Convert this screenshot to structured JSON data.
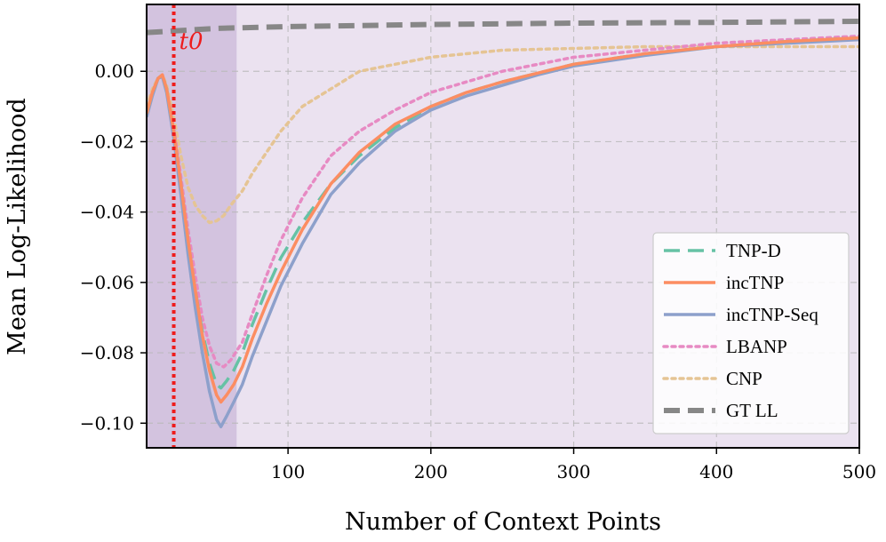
{
  "chart_data": {
    "type": "line",
    "title": "",
    "xlabel": "Number of Context Points",
    "ylabel": "Mean Log-Likelihood",
    "xlim": [
      1,
      500
    ],
    "ylim": [
      -0.107,
      0.019
    ],
    "x_ticks": [
      100,
      200,
      300,
      400,
      500
    ],
    "x_tick_labels": [
      "100",
      "200",
      "300",
      "400",
      "500"
    ],
    "y_ticks": [
      0.0,
      -0.02,
      -0.04,
      -0.06,
      -0.08,
      -0.1
    ],
    "y_tick_labels": [
      "0.00",
      "−0.02",
      "−0.04",
      "−0.06",
      "−0.08",
      "−0.10"
    ],
    "grid": true,
    "legend_position": "lower right",
    "background_color": "#ebe2f0",
    "shaded_region": {
      "x": [
        1,
        64
      ],
      "color": "#cbb8da"
    },
    "vertical_line": {
      "x": 20,
      "label": "t0",
      "color": "#ee1c1c",
      "style": "dotted"
    },
    "series": [
      {
        "name": "TNP-D",
        "color": "#66c2a5",
        "style": "dashed",
        "points": [
          [
            1,
            -0.012
          ],
          [
            5,
            -0.006
          ],
          [
            9,
            -0.002
          ],
          [
            12,
            -0.001
          ],
          [
            15,
            -0.005
          ],
          [
            20,
            -0.017
          ],
          [
            25,
            -0.032
          ],
          [
            30,
            -0.048
          ],
          [
            35,
            -0.062
          ],
          [
            40,
            -0.074
          ],
          [
            45,
            -0.083
          ],
          [
            50,
            -0.089
          ],
          [
            53,
            -0.09
          ],
          [
            57,
            -0.088
          ],
          [
            62,
            -0.085
          ],
          [
            68,
            -0.08
          ],
          [
            75,
            -0.072
          ],
          [
            85,
            -0.062
          ],
          [
            95,
            -0.053
          ],
          [
            110,
            -0.043
          ],
          [
            130,
            -0.032
          ],
          [
            150,
            -0.024
          ],
          [
            175,
            -0.016
          ],
          [
            200,
            -0.01
          ],
          [
            225,
            -0.006
          ],
          [
            250,
            -0.003
          ],
          [
            275,
            -0.0005
          ],
          [
            300,
            0.002
          ],
          [
            350,
            0.005
          ],
          [
            400,
            0.007
          ],
          [
            450,
            0.0085
          ],
          [
            500,
            0.0095
          ]
        ]
      },
      {
        "name": "incTNP",
        "color": "#fc8d62",
        "style": "solid",
        "points": [
          [
            1,
            -0.012
          ],
          [
            5,
            -0.006
          ],
          [
            9,
            -0.002
          ],
          [
            12,
            -0.001
          ],
          [
            15,
            -0.005
          ],
          [
            20,
            -0.017
          ],
          [
            25,
            -0.032
          ],
          [
            30,
            -0.048
          ],
          [
            35,
            -0.062
          ],
          [
            40,
            -0.075
          ],
          [
            45,
            -0.085
          ],
          [
            50,
            -0.092
          ],
          [
            53,
            -0.094
          ],
          [
            57,
            -0.092
          ],
          [
            62,
            -0.089
          ],
          [
            68,
            -0.084
          ],
          [
            75,
            -0.076
          ],
          [
            85,
            -0.066
          ],
          [
            95,
            -0.057
          ],
          [
            110,
            -0.045
          ],
          [
            130,
            -0.032
          ],
          [
            150,
            -0.023
          ],
          [
            175,
            -0.015
          ],
          [
            200,
            -0.01
          ],
          [
            225,
            -0.006
          ],
          [
            250,
            -0.003
          ],
          [
            275,
            -0.0005
          ],
          [
            300,
            0.002
          ],
          [
            350,
            0.005
          ],
          [
            400,
            0.007
          ],
          [
            450,
            0.0085
          ],
          [
            500,
            0.0095
          ]
        ]
      },
      {
        "name": "incTNP-Seq",
        "color": "#8da0cb",
        "style": "solid",
        "points": [
          [
            1,
            -0.013
          ],
          [
            5,
            -0.007
          ],
          [
            9,
            -0.002
          ],
          [
            12,
            -0.0015
          ],
          [
            15,
            -0.006
          ],
          [
            20,
            -0.019
          ],
          [
            25,
            -0.035
          ],
          [
            30,
            -0.052
          ],
          [
            35,
            -0.067
          ],
          [
            40,
            -0.08
          ],
          [
            45,
            -0.091
          ],
          [
            50,
            -0.099
          ],
          [
            53,
            -0.101
          ],
          [
            57,
            -0.098
          ],
          [
            62,
            -0.094
          ],
          [
            68,
            -0.089
          ],
          [
            75,
            -0.081
          ],
          [
            85,
            -0.071
          ],
          [
            95,
            -0.061
          ],
          [
            110,
            -0.049
          ],
          [
            130,
            -0.035
          ],
          [
            150,
            -0.026
          ],
          [
            175,
            -0.017
          ],
          [
            200,
            -0.011
          ],
          [
            225,
            -0.007
          ],
          [
            250,
            -0.004
          ],
          [
            275,
            -0.001
          ],
          [
            300,
            0.0015
          ],
          [
            350,
            0.0045
          ],
          [
            400,
            0.007
          ],
          [
            450,
            0.008
          ],
          [
            500,
            0.009
          ]
        ]
      },
      {
        "name": "LBANP",
        "color": "#e78ac3",
        "style": "dotted",
        "points": [
          [
            1,
            -0.012
          ],
          [
            5,
            -0.006
          ],
          [
            9,
            -0.002
          ],
          [
            12,
            -0.001
          ],
          [
            15,
            -0.005
          ],
          [
            20,
            -0.016
          ],
          [
            25,
            -0.03
          ],
          [
            30,
            -0.045
          ],
          [
            35,
            -0.058
          ],
          [
            40,
            -0.07
          ],
          [
            45,
            -0.078
          ],
          [
            50,
            -0.083
          ],
          [
            55,
            -0.084
          ],
          [
            60,
            -0.082
          ],
          [
            68,
            -0.077
          ],
          [
            75,
            -0.069
          ],
          [
            85,
            -0.058
          ],
          [
            95,
            -0.048
          ],
          [
            110,
            -0.036
          ],
          [
            130,
            -0.024
          ],
          [
            150,
            -0.017
          ],
          [
            175,
            -0.011
          ],
          [
            200,
            -0.006
          ],
          [
            225,
            -0.003
          ],
          [
            250,
            0.0
          ],
          [
            275,
            0.002
          ],
          [
            300,
            0.004
          ],
          [
            350,
            0.006
          ],
          [
            400,
            0.008
          ],
          [
            450,
            0.009
          ],
          [
            500,
            0.01
          ]
        ]
      },
      {
        "name": "CNP",
        "color": "#e5c494",
        "style": "dotted",
        "points": [
          [
            1,
            -0.01
          ],
          [
            5,
            -0.005
          ],
          [
            9,
            -0.002
          ],
          [
            12,
            -0.001
          ],
          [
            15,
            -0.004
          ],
          [
            20,
            -0.013
          ],
          [
            25,
            -0.024
          ],
          [
            30,
            -0.033
          ],
          [
            35,
            -0.038
          ],
          [
            40,
            -0.041
          ],
          [
            45,
            -0.043
          ],
          [
            50,
            -0.0425
          ],
          [
            55,
            -0.041
          ],
          [
            60,
            -0.038
          ],
          [
            68,
            -0.034
          ],
          [
            75,
            -0.029
          ],
          [
            85,
            -0.023
          ],
          [
            95,
            -0.017
          ],
          [
            110,
            -0.01
          ],
          [
            130,
            -0.005
          ],
          [
            150,
            0.0
          ],
          [
            175,
            0.002
          ],
          [
            200,
            0.004
          ],
          [
            250,
            0.006
          ],
          [
            300,
            0.0065
          ],
          [
            350,
            0.007
          ],
          [
            400,
            0.007
          ],
          [
            450,
            0.007
          ],
          [
            500,
            0.007
          ]
        ]
      },
      {
        "name": "GT LL",
        "color": "#878787",
        "style": "dashed",
        "points": [
          [
            1,
            0.011
          ],
          [
            50,
            0.0122
          ],
          [
            100,
            0.0127
          ],
          [
            200,
            0.0133
          ],
          [
            300,
            0.0137
          ],
          [
            400,
            0.0139
          ],
          [
            500,
            0.0142
          ]
        ]
      }
    ]
  }
}
